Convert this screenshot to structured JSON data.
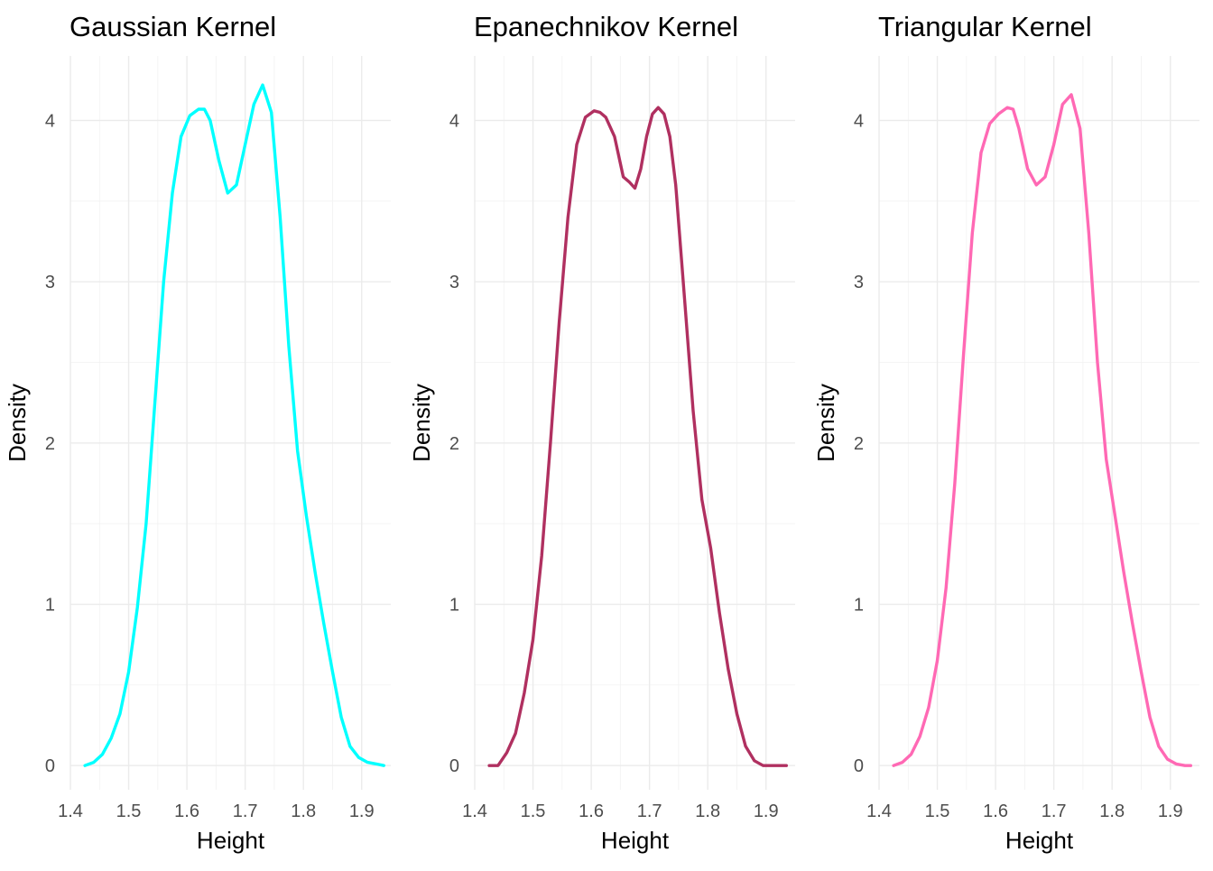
{
  "chart_data": [
    {
      "type": "line",
      "title": "Gaussian Kernel",
      "xlabel": "Height",
      "ylabel": "Density",
      "xlim": [
        1.4,
        1.95
      ],
      "ylim": [
        -0.15,
        4.4
      ],
      "xticks": [
        1.4,
        1.5,
        1.6,
        1.7,
        1.8,
        1.9
      ],
      "yticks": [
        0,
        1,
        2,
        3,
        4
      ],
      "color": "#00FFFF",
      "grid": true,
      "series": [
        {
          "x": [
            1.425,
            1.44,
            1.455,
            1.47,
            1.485,
            1.5,
            1.515,
            1.53,
            1.545,
            1.56,
            1.575,
            1.59,
            1.605,
            1.62,
            1.63,
            1.64,
            1.655,
            1.67,
            1.685,
            1.7,
            1.715,
            1.73,
            1.745,
            1.76,
            1.775,
            1.79,
            1.805,
            1.82,
            1.835,
            1.85,
            1.865,
            1.88,
            1.895,
            1.91,
            1.925,
            1.938
          ],
          "y": [
            0.0,
            0.02,
            0.07,
            0.17,
            0.32,
            0.58,
            0.98,
            1.5,
            2.25,
            3.0,
            3.55,
            3.9,
            4.03,
            4.07,
            4.07,
            4.0,
            3.75,
            3.55,
            3.6,
            3.85,
            4.1,
            4.22,
            4.05,
            3.4,
            2.6,
            1.95,
            1.55,
            1.2,
            0.88,
            0.58,
            0.3,
            0.12,
            0.05,
            0.02,
            0.01,
            0.0
          ]
        }
      ]
    },
    {
      "type": "line",
      "title": "Epanechnikov Kernel",
      "xlabel": "Height",
      "ylabel": "Density",
      "xlim": [
        1.4,
        1.95
      ],
      "ylim": [
        -0.15,
        4.4
      ],
      "xticks": [
        1.4,
        1.5,
        1.6,
        1.7,
        1.8,
        1.9
      ],
      "yticks": [
        0,
        1,
        2,
        3,
        4
      ],
      "color": "#B03060",
      "grid": true,
      "series": [
        {
          "x": [
            1.425,
            1.44,
            1.455,
            1.47,
            1.485,
            1.5,
            1.515,
            1.53,
            1.545,
            1.56,
            1.575,
            1.59,
            1.605,
            1.615,
            1.625,
            1.64,
            1.655,
            1.665,
            1.675,
            1.685,
            1.695,
            1.705,
            1.715,
            1.725,
            1.735,
            1.745,
            1.76,
            1.775,
            1.79,
            1.805,
            1.82,
            1.835,
            1.85,
            1.865,
            1.88,
            1.895,
            1.91,
            1.92,
            1.935
          ],
          "y": [
            0.0,
            0.0,
            0.08,
            0.2,
            0.45,
            0.78,
            1.3,
            2.0,
            2.75,
            3.4,
            3.85,
            4.02,
            4.06,
            4.05,
            4.02,
            3.9,
            3.65,
            3.62,
            3.58,
            3.7,
            3.9,
            4.04,
            4.08,
            4.04,
            3.9,
            3.6,
            2.9,
            2.2,
            1.65,
            1.35,
            0.95,
            0.6,
            0.32,
            0.12,
            0.03,
            0.0,
            0.0,
            0.0,
            0.0
          ]
        }
      ]
    },
    {
      "type": "line",
      "title": "Triangular Kernel",
      "xlabel": "Height",
      "ylabel": "Density",
      "xlim": [
        1.4,
        1.95
      ],
      "ylim": [
        -0.15,
        4.4
      ],
      "xticks": [
        1.4,
        1.5,
        1.6,
        1.7,
        1.8,
        1.9
      ],
      "yticks": [
        0,
        1,
        2,
        3,
        4
      ],
      "color": "#FF69B4",
      "grid": true,
      "series": [
        {
          "x": [
            1.425,
            1.44,
            1.455,
            1.47,
            1.485,
            1.5,
            1.515,
            1.53,
            1.545,
            1.56,
            1.575,
            1.59,
            1.605,
            1.62,
            1.63,
            1.64,
            1.655,
            1.67,
            1.685,
            1.7,
            1.715,
            1.73,
            1.745,
            1.76,
            1.775,
            1.79,
            1.805,
            1.82,
            1.835,
            1.85,
            1.865,
            1.88,
            1.895,
            1.91,
            1.925,
            1.935
          ],
          "y": [
            0.0,
            0.02,
            0.07,
            0.18,
            0.36,
            0.65,
            1.1,
            1.75,
            2.55,
            3.3,
            3.8,
            3.98,
            4.04,
            4.08,
            4.07,
            3.95,
            3.7,
            3.6,
            3.65,
            3.85,
            4.1,
            4.16,
            3.95,
            3.3,
            2.5,
            1.9,
            1.55,
            1.2,
            0.88,
            0.58,
            0.3,
            0.12,
            0.04,
            0.01,
            0.0,
            0.0
          ]
        }
      ]
    }
  ]
}
